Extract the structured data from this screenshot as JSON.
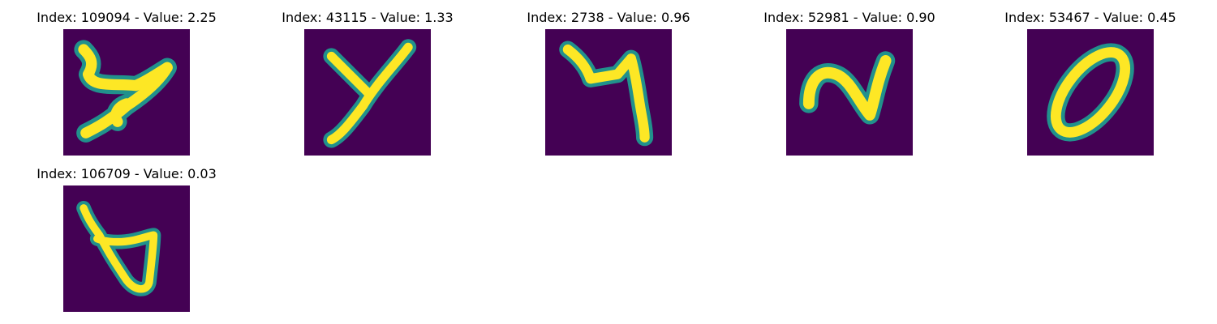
{
  "chart_data": [
    {
      "type": "image",
      "title": "Index: 109094 - Value: 2.25",
      "index": 109094,
      "value": 2.25,
      "digit_shape": "y-like"
    },
    {
      "type": "image",
      "title": "Index: 43115 - Value: 1.33",
      "index": 43115,
      "value": 1.33,
      "digit_shape": "Y"
    },
    {
      "type": "image",
      "title": "Index: 2738 - Value: 0.96",
      "index": 2738,
      "value": 0.96,
      "digit_shape": "4-like"
    },
    {
      "type": "image",
      "title": "Index: 52981 - Value: 0.90",
      "index": 52981,
      "value": 0.9,
      "digit_shape": "N-like"
    },
    {
      "type": "image",
      "title": "Index: 53467 - Value: 0.45",
      "index": 53467,
      "value": 0.45,
      "digit_shape": "0"
    },
    {
      "type": "image",
      "title": "Index: 106709 - Value: 0.03",
      "index": 106709,
      "value": 0.03,
      "digit_shape": "4-like triangle"
    }
  ],
  "colors": {
    "background": "#440154",
    "stroke_core": "#fde725",
    "stroke_mid": "#35b779",
    "stroke_edge": "#21918c"
  }
}
